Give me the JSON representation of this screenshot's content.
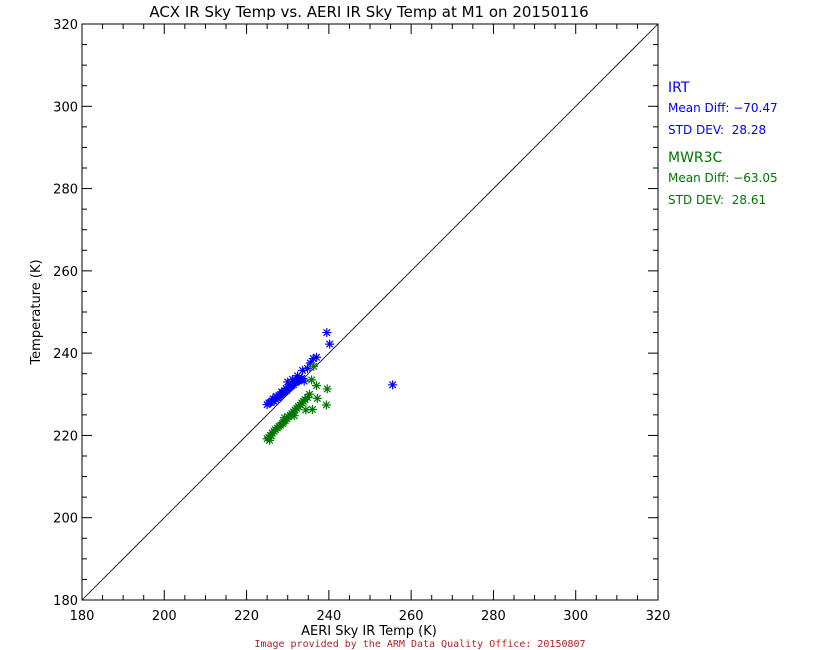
{
  "chart_data": {
    "type": "scatter",
    "title": "ACX IR Sky Temp vs. AERI IR Sky Temp at M1 on 20150116",
    "xlabel": "AERI Sky IR Temp (K)",
    "ylabel": "Temperature (K)",
    "xlim": [
      180,
      320
    ],
    "ylim": [
      180,
      320
    ],
    "xticks": [
      "180",
      "200",
      "220",
      "240",
      "260",
      "280",
      "300",
      "320"
    ],
    "yticks": [
      "180",
      "200",
      "220",
      "240",
      "260",
      "280",
      "300",
      "320"
    ],
    "reference_line": "1:1",
    "grid": false,
    "marker": "asterisk",
    "credit": "Image provided by the ARM Data Quality Office: 20150807",
    "series": [
      {
        "name": "IRT",
        "color": "#0000ff",
        "mean_diff_label": "Mean Diff:",
        "mean_diff": "−70.47",
        "std_label": "STD DEV:",
        "std_dev": "28.28",
        "points": [
          [
            225.0,
            227.5
          ],
          [
            225.4,
            227.9
          ],
          [
            225.8,
            228.0
          ],
          [
            226.2,
            228.4
          ],
          [
            226.7,
            228.3
          ],
          [
            227.0,
            228.8
          ],
          [
            227.5,
            229.2
          ],
          [
            227.9,
            229.4
          ],
          [
            228.3,
            229.8
          ],
          [
            228.7,
            230.1
          ],
          [
            229.0,
            230.4
          ],
          [
            229.4,
            230.8
          ],
          [
            229.8,
            231.0
          ],
          [
            230.2,
            231.5
          ],
          [
            230.6,
            231.8
          ],
          [
            231.0,
            232.1
          ],
          [
            231.4,
            232.4
          ],
          [
            231.8,
            232.8
          ],
          [
            232.2,
            233.1
          ],
          [
            232.6,
            233.3
          ],
          [
            233.0,
            233.6
          ],
          [
            233.4,
            233.9
          ],
          [
            230.0,
            233.0
          ],
          [
            231.2,
            233.6
          ],
          [
            232.4,
            234.5
          ],
          [
            233.6,
            235.8
          ],
          [
            234.8,
            236.3
          ],
          [
            236.2,
            238.7
          ],
          [
            237.0,
            239.0
          ],
          [
            235.5,
            237.6
          ],
          [
            234.0,
            233.2
          ],
          [
            228.5,
            230.6
          ],
          [
            229.6,
            231.4
          ],
          [
            226.4,
            228.9
          ],
          [
            227.2,
            229.5
          ],
          [
            239.5,
            245.0
          ],
          [
            240.2,
            242.2
          ],
          [
            255.5,
            232.3
          ]
        ]
      },
      {
        "name": "MWR3C",
        "color": "#007700",
        "mean_diff_label": "Mean Diff:",
        "mean_diff": "−63.05",
        "std_label": "STD DEV:",
        "std_dev": "28.61",
        "points": [
          [
            225.0,
            219.2
          ],
          [
            225.4,
            219.5
          ],
          [
            225.8,
            220.0
          ],
          [
            226.2,
            220.6
          ],
          [
            226.7,
            221.0
          ],
          [
            227.0,
            221.4
          ],
          [
            227.5,
            221.8
          ],
          [
            227.9,
            222.2
          ],
          [
            228.3,
            222.5
          ],
          [
            228.7,
            222.9
          ],
          [
            229.0,
            223.2
          ],
          [
            229.4,
            223.6
          ],
          [
            229.8,
            224.0
          ],
          [
            230.2,
            224.5
          ],
          [
            230.6,
            224.9
          ],
          [
            231.0,
            225.3
          ],
          [
            231.4,
            225.7
          ],
          [
            231.8,
            226.2
          ],
          [
            232.2,
            226.6
          ],
          [
            232.6,
            227.0
          ],
          [
            233.0,
            227.4
          ],
          [
            233.4,
            227.9
          ],
          [
            233.8,
            228.3
          ],
          [
            234.2,
            228.7
          ],
          [
            234.8,
            229.2
          ],
          [
            235.3,
            230.0
          ],
          [
            235.8,
            233.5
          ],
          [
            236.3,
            236.8
          ],
          [
            237.0,
            232.1
          ],
          [
            236.0,
            226.3
          ],
          [
            239.6,
            231.3
          ],
          [
            239.4,
            227.4
          ],
          [
            225.6,
            218.8
          ],
          [
            226.0,
            219.9
          ],
          [
            229.2,
            224.3
          ],
          [
            231.6,
            224.8
          ],
          [
            234.4,
            226.2
          ],
          [
            237.2,
            229.0
          ]
        ]
      }
    ]
  }
}
